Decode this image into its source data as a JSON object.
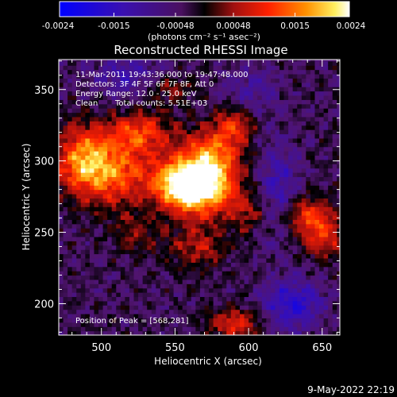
{
  "chart_data": {
    "type": "heatmap",
    "title": "Reconstructed RHESSI Image",
    "xlabel": "Heliocentric X (arcsec)",
    "ylabel": "Heliocentric Y (arcsec)",
    "xlim": [
      471,
      662
    ],
    "ylim": [
      178,
      371
    ],
    "xticks": [
      500,
      550,
      600,
      650
    ],
    "yticks": [
      200,
      250,
      300,
      350
    ],
    "colorbar": {
      "unit_label": "(photons cm⁻² s⁻¹ asec⁻²)",
      "range": [
        -0.0024,
        0.0024
      ],
      "ticks": [
        {
          "value": -0.0024,
          "label": "-0.0024"
        },
        {
          "value": -0.0015,
          "label": "-0.0015"
        },
        {
          "value": -0.00048,
          "label": "-0.00048"
        },
        {
          "value": 0.00048,
          "label": "0.00048"
        },
        {
          "value": 0.0015,
          "label": "0.0015"
        },
        {
          "value": 0.0024,
          "label": "0.0024"
        }
      ]
    },
    "annotations": {
      "time_range": "11-Mar-2011 19:43:36.000 to 19:47:48.000",
      "detectors": "Detectors: 3F 4F 5F 6F 7F 8F, Att 0",
      "energy": "Energy Range: 12.0 - 25.0 keV",
      "algorithm": "Clean",
      "counts": "Total counts: 5.51E+03",
      "peak": "Position of Peak = [568,281]"
    },
    "peak_position": [
      568,
      281
    ],
    "sources": [
      {
        "x": 568,
        "y": 281,
        "amp": 1.0,
        "sx": 16,
        "sy": 14
      },
      {
        "x": 553,
        "y": 285,
        "amp": 0.75,
        "sx": 14,
        "sy": 12
      },
      {
        "x": 505,
        "y": 292,
        "amp": 0.75,
        "sx": 20,
        "sy": 16
      },
      {
        "x": 487,
        "y": 304,
        "amp": 0.55,
        "sx": 12,
        "sy": 16
      },
      {
        "x": 525,
        "y": 320,
        "amp": 0.6,
        "sx": 16,
        "sy": 10
      },
      {
        "x": 575,
        "y": 304,
        "amp": 0.65,
        "sx": 14,
        "sy": 14
      },
      {
        "x": 590,
        "y": 325,
        "amp": 0.45,
        "sx": 10,
        "sy": 10
      },
      {
        "x": 545,
        "y": 352,
        "amp": 0.35,
        "sx": 12,
        "sy": 8
      },
      {
        "x": 600,
        "y": 265,
        "amp": 0.35,
        "sx": 10,
        "sy": 10
      },
      {
        "x": 640,
        "y": 262,
        "amp": 0.6,
        "sx": 12,
        "sy": 10
      },
      {
        "x": 652,
        "y": 245,
        "amp": 0.45,
        "sx": 10,
        "sy": 10
      },
      {
        "x": 565,
        "y": 240,
        "amp": 0.4,
        "sx": 14,
        "sy": 10
      },
      {
        "x": 590,
        "y": 186,
        "amp": 0.55,
        "sx": 12,
        "sy": 8
      },
      {
        "x": 523,
        "y": 250,
        "amp": 0.3,
        "sx": 10,
        "sy": 10
      }
    ],
    "negative_regions": [
      {
        "x": 630,
        "y": 200,
        "amp": -0.55,
        "sx": 14,
        "sy": 12
      },
      {
        "x": 620,
        "y": 280,
        "amp": -0.4,
        "sx": 10,
        "sy": 24
      },
      {
        "x": 520,
        "y": 360,
        "amp": -0.35,
        "sx": 18,
        "sy": 10
      },
      {
        "x": 600,
        "y": 350,
        "amp": -0.25,
        "sx": 14,
        "sy": 12
      }
    ],
    "background": -0.15
  },
  "footer": {
    "timestamp": "9-May-2022 22:19"
  }
}
